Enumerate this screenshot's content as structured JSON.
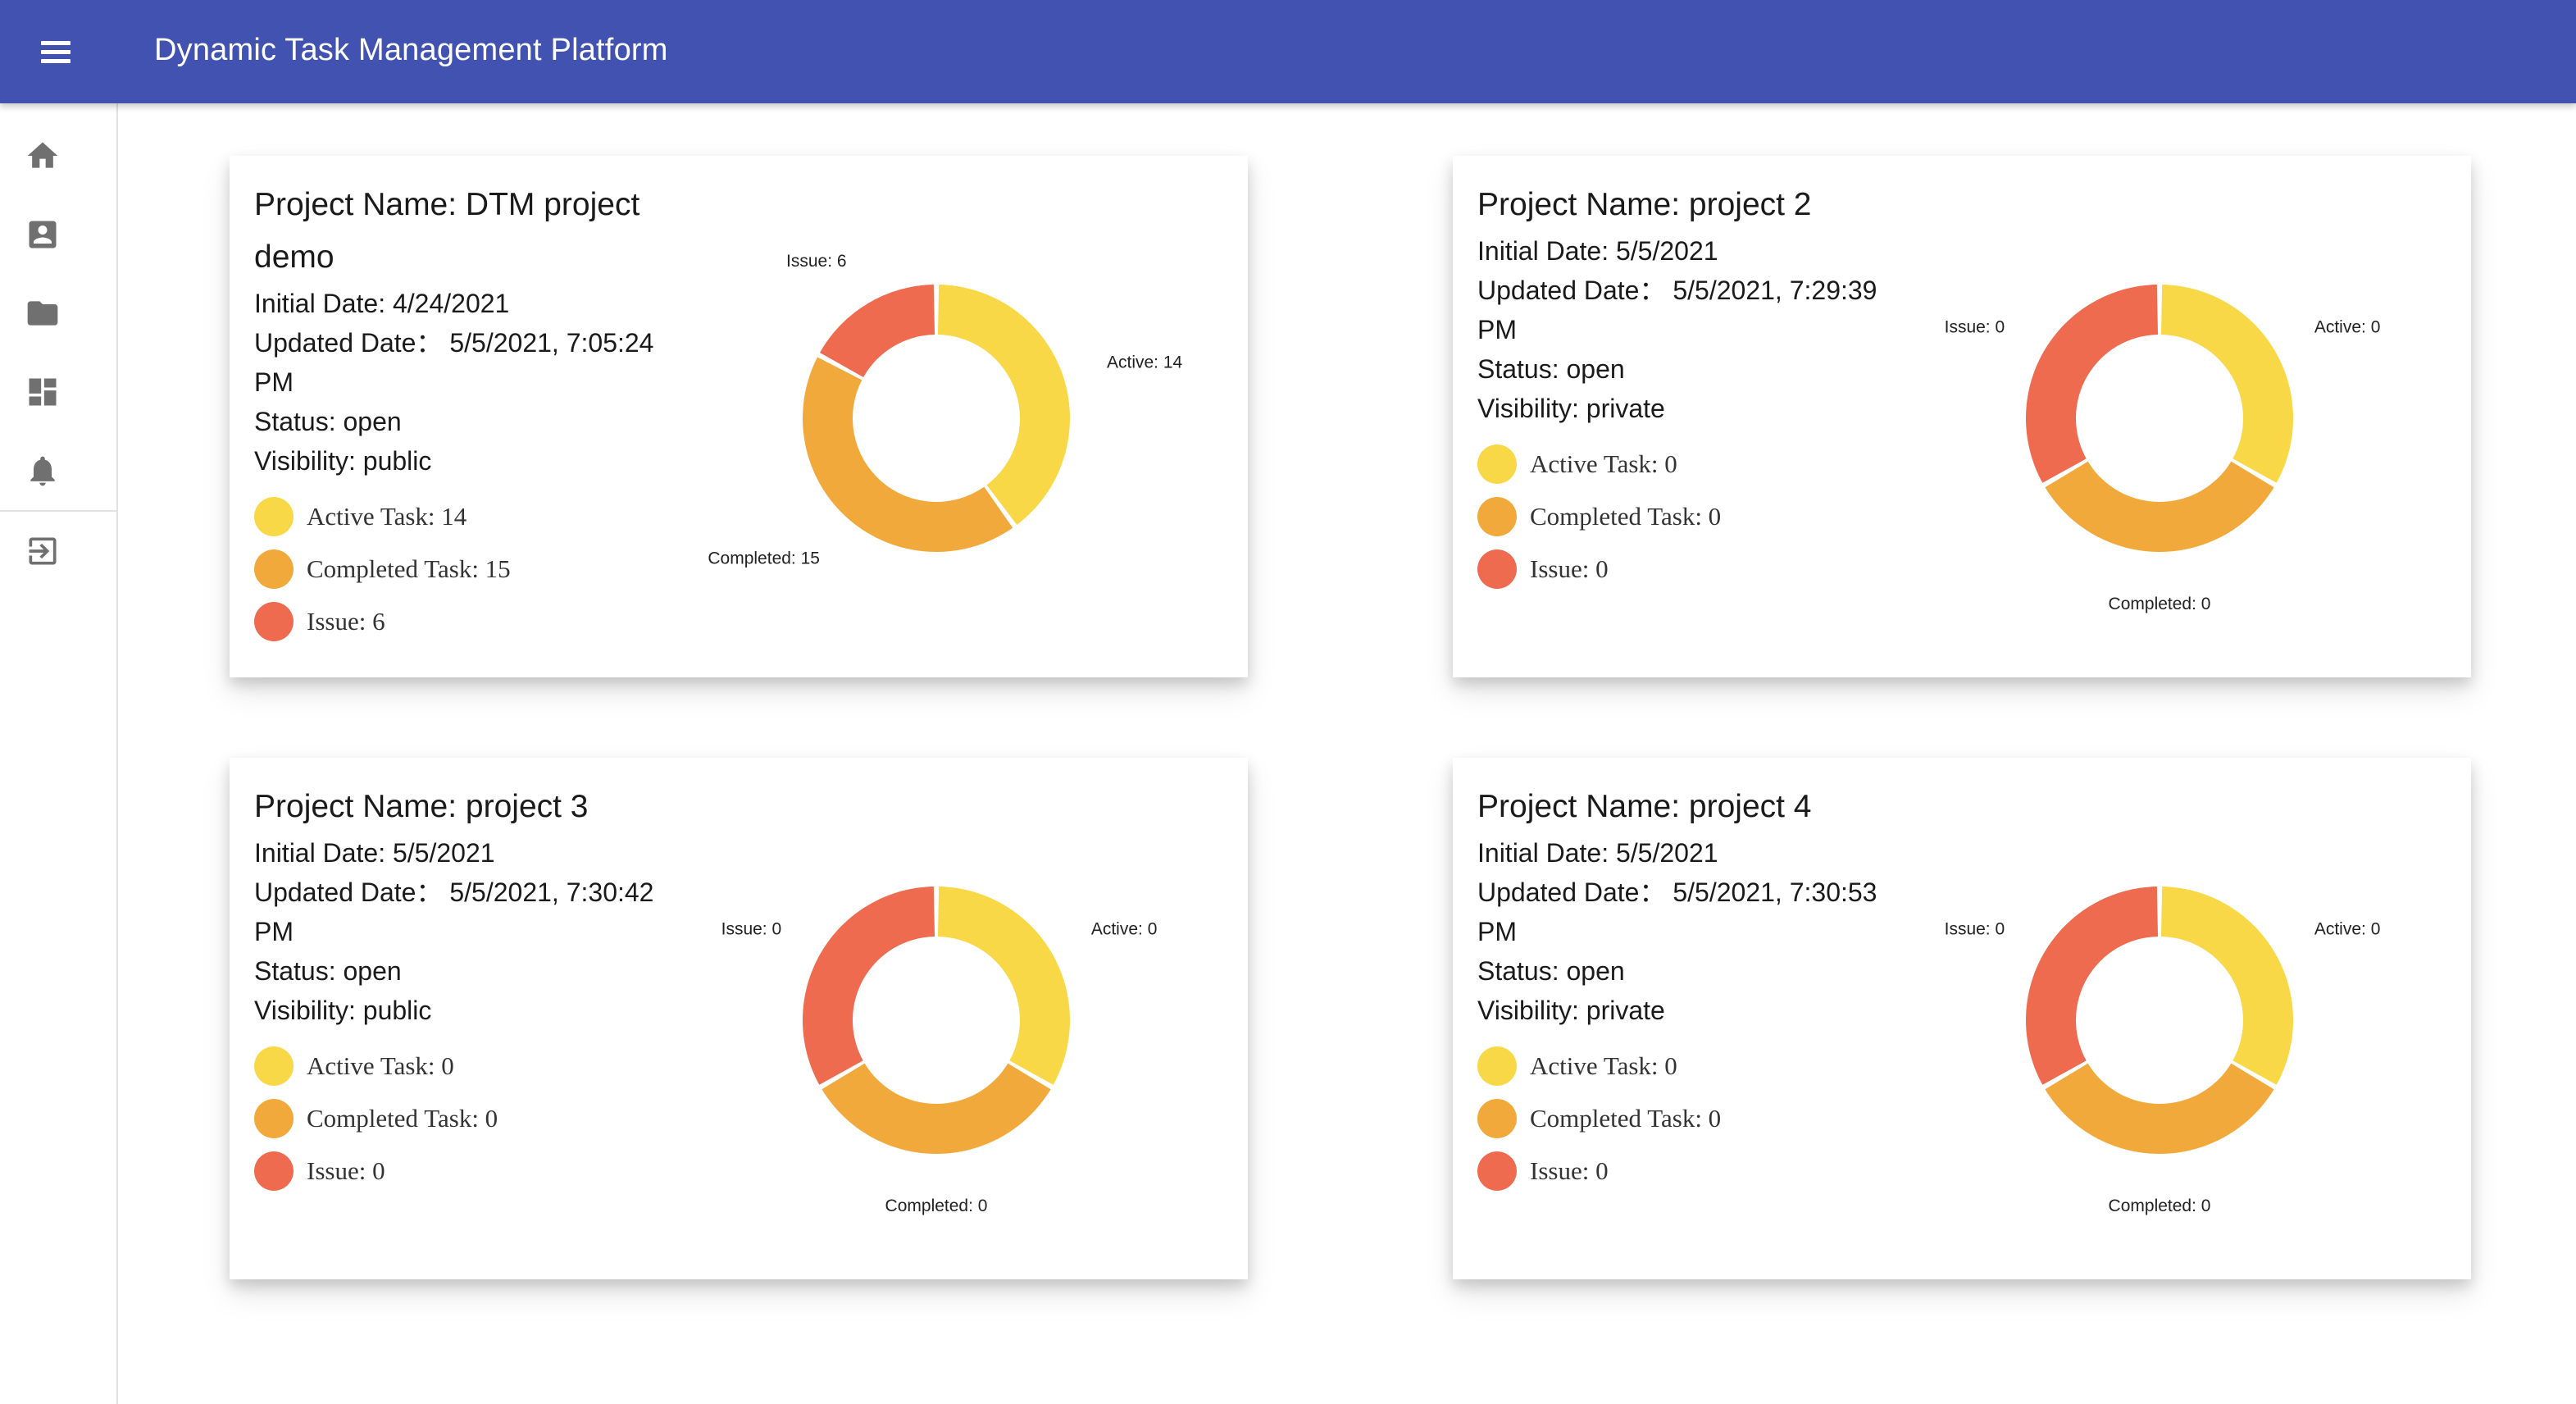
{
  "app": {
    "title": "Dynamic Task Management Platform"
  },
  "sidebar": {
    "items": [
      {
        "name": "home",
        "icon": "home-icon"
      },
      {
        "name": "profile",
        "icon": "account-box-icon"
      },
      {
        "name": "projects",
        "icon": "folder-icon"
      },
      {
        "name": "dashboard",
        "icon": "dashboard-icon"
      },
      {
        "name": "notifications",
        "icon": "bell-icon"
      },
      {
        "name": "logout",
        "icon": "exit-icon"
      }
    ]
  },
  "colors": {
    "appbar": "#4252b0",
    "active": "#f9d848",
    "completed": "#f2a93b",
    "issue": "#ee6b4f"
  },
  "projects": [
    {
      "name_line1": "Project Name: DTM project",
      "name_line2": "demo",
      "initial_date": "Initial Date: 4/24/2021",
      "updated_date_1": "Updated Date： 5/5/2021, 7:05:24",
      "updated_date_2": "PM",
      "status": "Status: open",
      "visibility": "Visibility: public",
      "legend": {
        "active": "Active Task: 14",
        "completed": "Completed Task: 15",
        "issue": "Issue: 6"
      },
      "chart_data": {
        "type": "pie",
        "donut": true,
        "categories": [
          "Active",
          "Completed",
          "Issue"
        ],
        "values": [
          14,
          15,
          6
        ],
        "labels": [
          "Active: 14",
          "Completed: 15",
          "Issue: 6"
        ]
      }
    },
    {
      "name_line1": "Project Name: project 2",
      "initial_date": "Initial Date: 5/5/2021",
      "updated_date_1": "Updated Date： 5/5/2021, 7:29:39",
      "updated_date_2": "PM",
      "status": "Status: open",
      "visibility": "Visibility: private",
      "legend": {
        "active": "Active Task: 0",
        "completed": "Completed Task: 0",
        "issue": "Issue: 0"
      },
      "chart_data": {
        "type": "pie",
        "donut": true,
        "categories": [
          "Active",
          "Completed",
          "Issue"
        ],
        "values": [
          0,
          0,
          0
        ],
        "labels": [
          "Active: 0",
          "Completed: 0",
          "Issue: 0"
        ]
      }
    },
    {
      "name_line1": "Project Name: project 3",
      "initial_date": "Initial Date: 5/5/2021",
      "updated_date_1": "Updated Date： 5/5/2021, 7:30:42",
      "updated_date_2": "PM",
      "status": "Status: open",
      "visibility": "Visibility: public",
      "legend": {
        "active": "Active Task: 0",
        "completed": "Completed Task: 0",
        "issue": "Issue: 0"
      },
      "chart_data": {
        "type": "pie",
        "donut": true,
        "categories": [
          "Active",
          "Completed",
          "Issue"
        ],
        "values": [
          0,
          0,
          0
        ],
        "labels": [
          "Active: 0",
          "Completed: 0",
          "Issue: 0"
        ]
      }
    },
    {
      "name_line1": "Project Name: project 4",
      "initial_date": "Initial Date: 5/5/2021",
      "updated_date_1": "Updated Date： 5/5/2021, 7:30:53",
      "updated_date_2": "PM",
      "status": "Status: open",
      "visibility": "Visibility: private",
      "legend": {
        "active": "Active Task: 0",
        "completed": "Completed Task: 0",
        "issue": "Issue: 0"
      },
      "chart_data": {
        "type": "pie",
        "donut": true,
        "categories": [
          "Active",
          "Completed",
          "Issue"
        ],
        "values": [
          0,
          0,
          0
        ],
        "labels": [
          "Active: 0",
          "Completed: 0",
          "Issue: 0"
        ]
      }
    }
  ]
}
